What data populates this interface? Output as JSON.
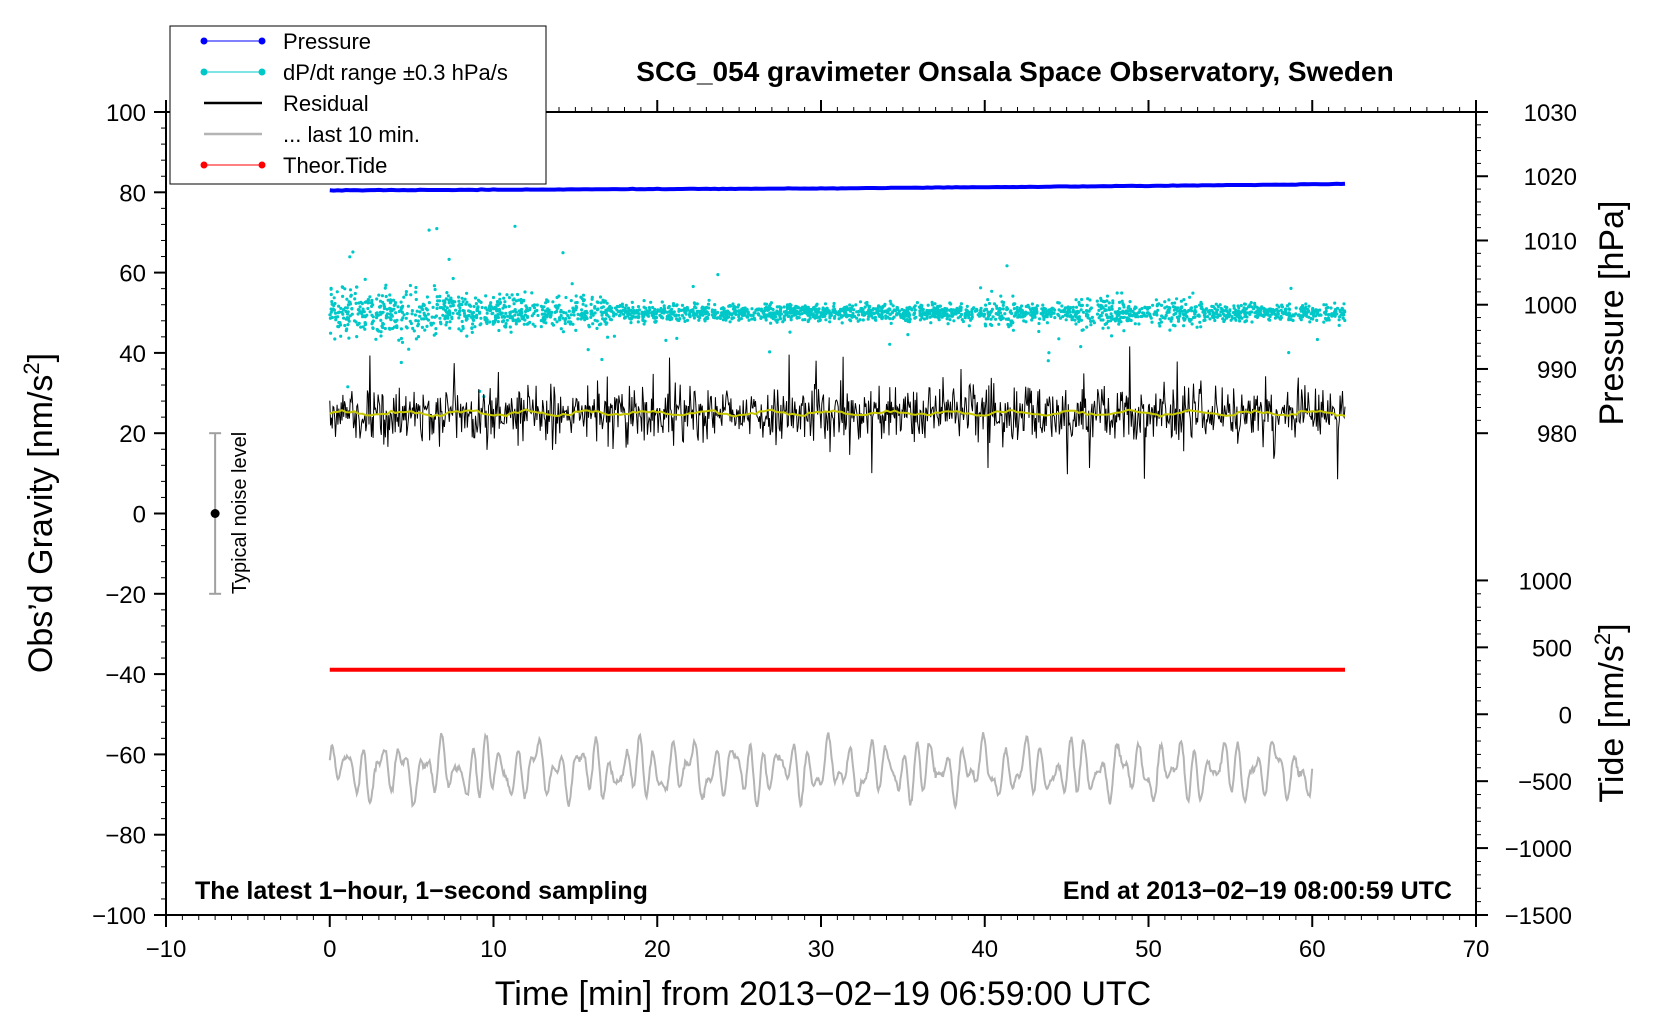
{
  "chart_data": {
    "type": "line",
    "title": "SCG_054 gravimeter Onsala Space Observatory, Sweden",
    "xlabel": "Time [min] from 2013−02−19 06:59:00 UTC",
    "ylabel_left": "Obs’d Gravity [nm/s",
    "ylabel_left_sup": "2",
    "ylabel_left_end": "]",
    "ylabel_pressure": "Pressure [hPa]",
    "ylabel_tide": "Tide [nm/s",
    "ylabel_tide_sup": "2",
    "ylabel_tide_end": "]",
    "xlim": [
      -10,
      70
    ],
    "ylim_left": [
      -100,
      100
    ],
    "x_ticks": [
      -10,
      0,
      10,
      20,
      30,
      40,
      50,
      60,
      70
    ],
    "x_tick_labels": [
      "−10",
      "0",
      "10",
      "20",
      "30",
      "40",
      "50",
      "60",
      "70"
    ],
    "y_ticks_left": [
      100,
      80,
      60,
      40,
      20,
      0,
      -20,
      -40,
      -60,
      -80,
      -100
    ],
    "y_tick_labels_left": [
      "100",
      "80",
      "60",
      "40",
      "20",
      "0",
      "−20",
      "−40",
      "−60",
      "−80",
      "−100"
    ],
    "pressure_axis": {
      "range": [
        980,
        1030
      ],
      "ticks": [
        1030,
        1020,
        1010,
        1000,
        990,
        980
      ],
      "tick_labels": [
        "1030",
        "1020",
        "1010",
        "1000",
        "990",
        "980"
      ],
      "left_equivalent": [
        100,
        20
      ]
    },
    "tide_axis": {
      "range": [
        -1500,
        1000
      ],
      "ticks": [
        1000,
        500,
        0,
        -500,
        -1000,
        -1500
      ],
      "tick_labels": [
        "1000",
        "500",
        "0",
        "−500",
        "−1000",
        "−1500"
      ],
      "left_equivalent": [
        -100,
        -16.67
      ]
    },
    "legend": {
      "placement": "top-left",
      "entries": [
        {
          "label": "Pressure",
          "color": "#0000ff",
          "marker": "dot"
        },
        {
          "label": "dP/dt range ±0.3 hPa/s",
          "color": "#00c8c8",
          "marker": "dot"
        },
        {
          "label": "Residual",
          "color": "#000000",
          "marker": "none"
        },
        {
          "label": "... last 10 min.",
          "color": "#b4b4b4",
          "marker": "none"
        },
        {
          "label": "Theor.Tide",
          "color": "#ff0000",
          "marker": "dot"
        }
      ]
    },
    "series": [
      {
        "name": "Pressure",
        "axis": "pressure",
        "color": "#0000ff",
        "x": [
          0,
          10,
          20,
          30,
          40,
          50,
          62
        ],
        "y": [
          1017.8,
          1017.9,
          1018.0,
          1018.1,
          1018.3,
          1018.5,
          1018.8
        ]
      },
      {
        "name": "dP/dt range",
        "axis": "left",
        "color": "#00c8c8",
        "type": "scatter",
        "x_range": [
          0,
          62
        ],
        "center": 50,
        "spread_peak": 10
      },
      {
        "name": "Residual",
        "axis": "left",
        "color": "#000000",
        "x_range": [
          0,
          62
        ],
        "center": 25,
        "amplitude": 8
      },
      {
        "name": "Residual (10-min smoothed)",
        "axis": "left",
        "color": "#c8c800",
        "x_range": [
          0,
          62
        ],
        "center": 25
      },
      {
        "name": "... last 10 min.",
        "axis": "left",
        "color": "#b4b4b4",
        "x_range": [
          0,
          60
        ],
        "center": -64,
        "amplitude": 8
      },
      {
        "name": "Theor.Tide",
        "axis": "tide",
        "color": "#ff0000",
        "x": [
          0,
          62
        ],
        "y": [
          333,
          333
        ]
      }
    ],
    "noise_bar": {
      "x": -7,
      "y_min": -20,
      "y_max": 20,
      "center": 0,
      "label": "Typical noise level"
    },
    "annotations": {
      "bottom_left": "The latest 1−hour, 1−second sampling",
      "bottom_right": "End at 2013−02−19 08:00:59 UTC"
    },
    "colors": {
      "pressure": "#0000ff",
      "dpdt": "#00c8c8",
      "residual": "#000000",
      "smooth": "#c8c800",
      "last10": "#b4b4b4",
      "tide": "#ff0000",
      "noise_bar": "#a0a0a0"
    }
  }
}
